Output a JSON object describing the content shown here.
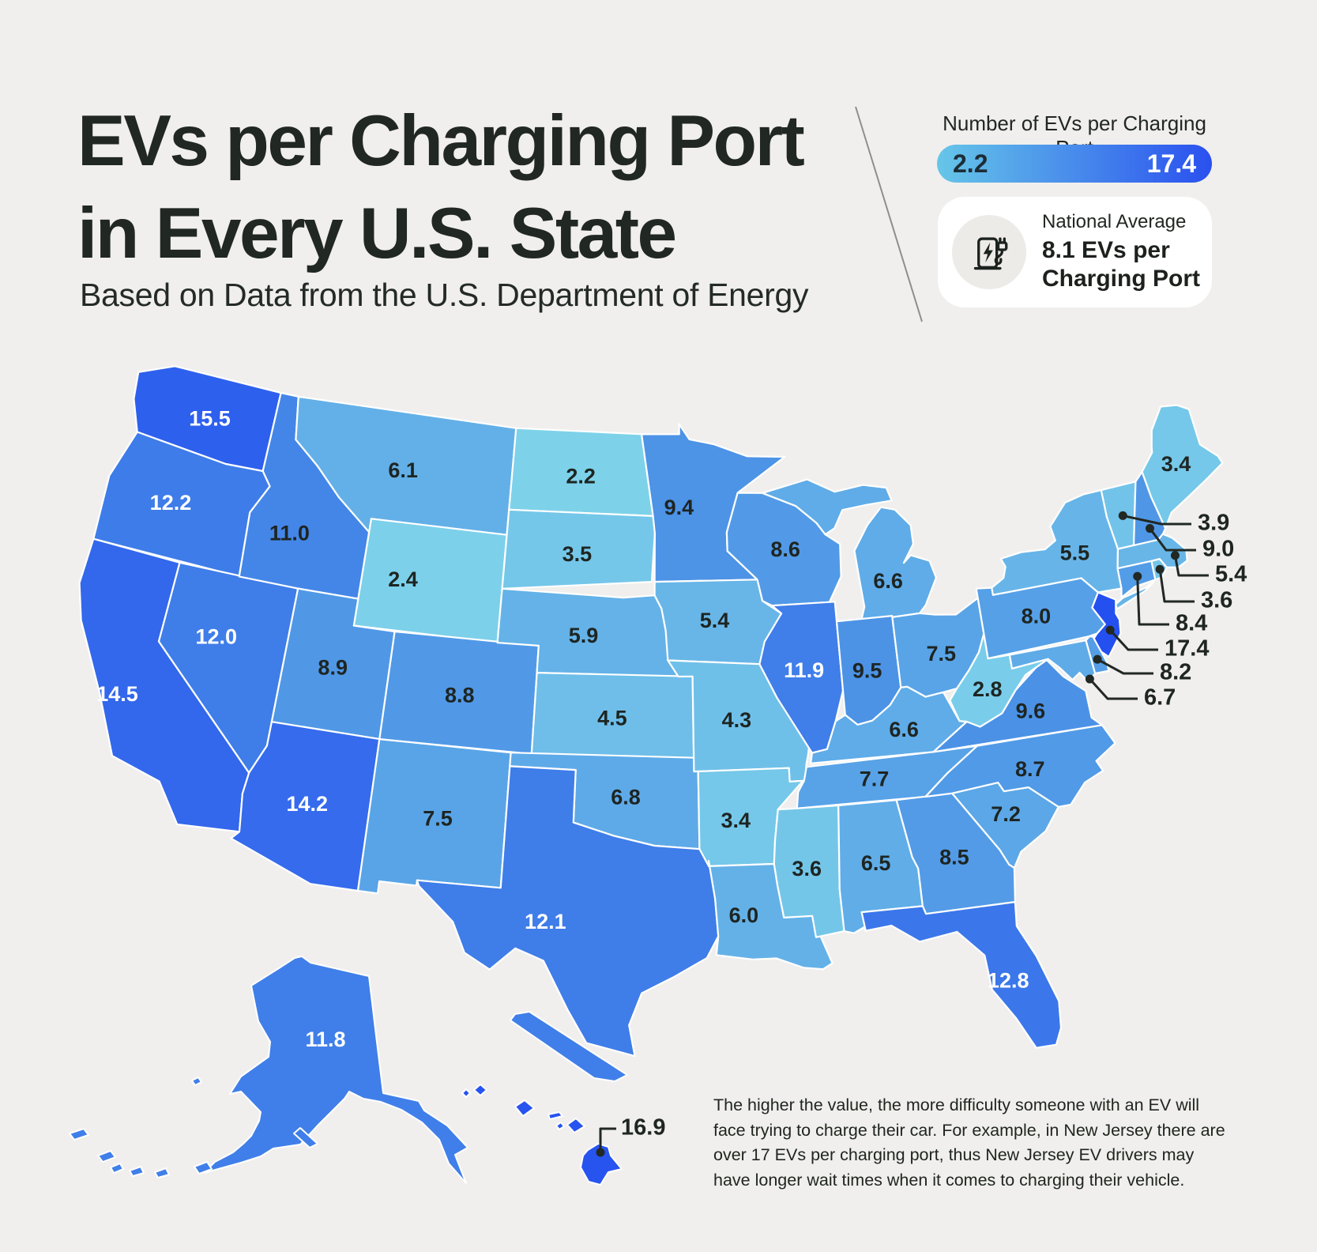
{
  "title": {
    "line1": "EVs per Charging Port",
    "line2": "in Every U.S. State"
  },
  "subtitle": "Based on Data from the U.S. Department of Energy",
  "legend": {
    "label": "Number of EVs per Charging Port",
    "min_label": "2.2",
    "max_label": "17.4"
  },
  "national_average": {
    "label": "National Average",
    "line1": "8.1 EVs per",
    "line2": "Charging Port",
    "icon": "ev-charger-icon"
  },
  "footnote": "The higher the value, the more difficulty someone with an EV will face trying to charge their car. For example, in New Jersey there are over 17 EVs per charging port, thus New Jersey EV drivers may have longer wait times when it comes to charging their vehicle.",
  "colors": {
    "background": "#f0efed",
    "text_dark": "#212722",
    "label_light": "#ffffff",
    "scale_low": "#7dd2ea",
    "scale_mid": "#4a90e6",
    "scale_high": "#2550f0",
    "legend_gradient_left": "#66c6e8",
    "legend_gradient_right": "#2a50ef",
    "state_border": "#ffffff",
    "callout_line": "#222823",
    "divider": "#8e8e8b"
  },
  "chart_data": {
    "type": "choropleth_map",
    "title": "EVs per Charging Port in Every U.S. State",
    "source": "U.S. Department of Energy",
    "metric": "Number of EVs per Charging Port",
    "scale": {
      "min": 2.2,
      "max": 17.4
    },
    "national_average": 8.1,
    "white_label_threshold": 11.5,
    "states": [
      {
        "abbr": "WA",
        "name": "Washington",
        "value": 15.5
      },
      {
        "abbr": "OR",
        "name": "Oregon",
        "value": 12.2
      },
      {
        "abbr": "CA",
        "name": "California",
        "value": 14.5
      },
      {
        "abbr": "NV",
        "name": "Nevada",
        "value": 12.0
      },
      {
        "abbr": "ID",
        "name": "Idaho",
        "value": 11.0
      },
      {
        "abbr": "MT",
        "name": "Montana",
        "value": 6.1
      },
      {
        "abbr": "WY",
        "name": "Wyoming",
        "value": 2.4
      },
      {
        "abbr": "UT",
        "name": "Utah",
        "value": 8.9
      },
      {
        "abbr": "CO",
        "name": "Colorado",
        "value": 8.8
      },
      {
        "abbr": "AZ",
        "name": "Arizona",
        "value": 14.2
      },
      {
        "abbr": "NM",
        "name": "New Mexico",
        "value": 7.5
      },
      {
        "abbr": "ND",
        "name": "North Dakota",
        "value": 2.2
      },
      {
        "abbr": "SD",
        "name": "South Dakota",
        "value": 3.5
      },
      {
        "abbr": "NE",
        "name": "Nebraska",
        "value": 5.9
      },
      {
        "abbr": "KS",
        "name": "Kansas",
        "value": 4.5
      },
      {
        "abbr": "OK",
        "name": "Oklahoma",
        "value": 6.8
      },
      {
        "abbr": "TX",
        "name": "Texas",
        "value": 12.1
      },
      {
        "abbr": "MN",
        "name": "Minnesota",
        "value": 9.4
      },
      {
        "abbr": "IA",
        "name": "Iowa",
        "value": 5.4
      },
      {
        "abbr": "MO",
        "name": "Missouri",
        "value": 4.3
      },
      {
        "abbr": "AR",
        "name": "Arkansas",
        "value": 3.4
      },
      {
        "abbr": "LA",
        "name": "Louisiana",
        "value": 6.0
      },
      {
        "abbr": "WI",
        "name": "Wisconsin",
        "value": 8.6
      },
      {
        "abbr": "IL",
        "name": "Illinois",
        "value": 11.9
      },
      {
        "abbr": "MS",
        "name": "Mississippi",
        "value": 3.6
      },
      {
        "abbr": "MI",
        "name": "Michigan",
        "value": 6.6
      },
      {
        "abbr": "IN",
        "name": "Indiana",
        "value": 9.5
      },
      {
        "abbr": "OH",
        "name": "Ohio",
        "value": 7.5
      },
      {
        "abbr": "KY",
        "name": "Kentucky",
        "value": 6.6
      },
      {
        "abbr": "TN",
        "name": "Tennessee",
        "value": 7.7
      },
      {
        "abbr": "AL",
        "name": "Alabama",
        "value": 6.5
      },
      {
        "abbr": "GA",
        "name": "Georgia",
        "value": 8.5
      },
      {
        "abbr": "FL",
        "name": "Florida",
        "value": 12.8
      },
      {
        "abbr": "SC",
        "name": "South Carolina",
        "value": 7.2
      },
      {
        "abbr": "NC",
        "name": "North Carolina",
        "value": 8.7
      },
      {
        "abbr": "VA",
        "name": "Virginia",
        "value": 9.6
      },
      {
        "abbr": "WV",
        "name": "West Virginia",
        "value": 2.8
      },
      {
        "abbr": "PA",
        "name": "Pennsylvania",
        "value": 8.0
      },
      {
        "abbr": "NY",
        "name": "New York",
        "value": 5.5
      },
      {
        "abbr": "ME",
        "name": "Maine",
        "value": 3.4
      },
      {
        "abbr": "VT",
        "name": "Vermont",
        "value": 3.9,
        "callout": true
      },
      {
        "abbr": "NH",
        "name": "New Hampshire",
        "value": 9.0,
        "callout": true
      },
      {
        "abbr": "MA",
        "name": "Massachusetts",
        "value": 5.4,
        "callout": true
      },
      {
        "abbr": "RI",
        "name": "Rhode Island",
        "value": 3.6,
        "callout": true
      },
      {
        "abbr": "CT",
        "name": "Connecticut",
        "value": 8.4,
        "callout": true
      },
      {
        "abbr": "NJ",
        "name": "New Jersey",
        "value": 17.4,
        "callout": true
      },
      {
        "abbr": "DE",
        "name": "Delaware",
        "value": 8.2,
        "callout": true
      },
      {
        "abbr": "MD",
        "name": "Maryland",
        "value": 6.7,
        "callout": true
      },
      {
        "abbr": "AK",
        "name": "Alaska",
        "value": 11.8
      },
      {
        "abbr": "HI",
        "name": "Hawaii",
        "value": 16.9,
        "callout": true
      }
    ]
  }
}
